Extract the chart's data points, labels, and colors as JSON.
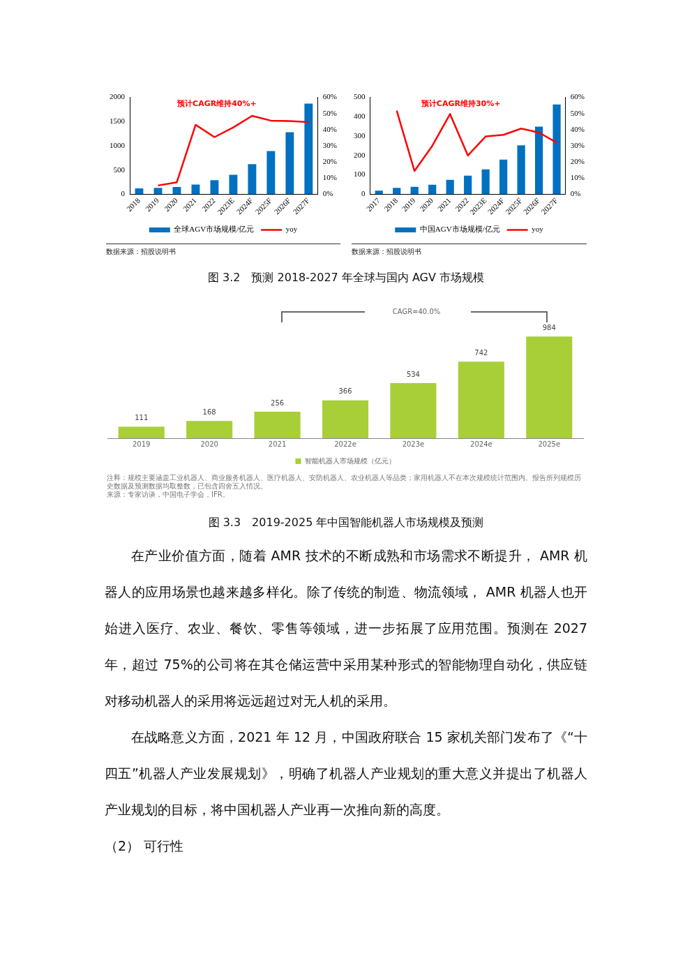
{
  "chart_data": [
    {
      "type": "bar",
      "categories": [
        "2018",
        "2019",
        "2020",
        "2021",
        "2022",
        "2023E",
        "2024F",
        "2025F",
        "2026F",
        "2027F"
      ],
      "series": [
        {
          "name": "全球AGV市场规模/亿元",
          "color": "#0070c0",
          "values": [
            120,
            130,
            150,
            200,
            290,
            400,
            620,
            890,
            1280,
            1870
          ]
        },
        {
          "name": "yoy",
          "type": "line",
          "axis": "y2",
          "color": "#ff0000",
          "values": [
            null,
            5.4,
            7.4,
            43,
            35.4,
            41.4,
            48.6,
            45.6,
            45.3,
            44.7
          ]
        }
      ],
      "ylim": [
        0,
        2000
      ],
      "yticks": [
        0,
        500,
        1000,
        1500,
        2000
      ],
      "y2lim": [
        0,
        60
      ],
      "y2ticks": [
        {
          "value": 0,
          "label": "0%"
        },
        {
          "value": 10,
          "label": "10%"
        },
        {
          "value": 20,
          "label": "20%"
        },
        {
          "value": 30,
          "label": "30%"
        },
        {
          "value": 40,
          "label": "40%"
        },
        {
          "value": 50,
          "label": "50%"
        },
        {
          "value": 60,
          "label": "60%"
        }
      ],
      "legend": "bottom",
      "marker": "none",
      "grid": false,
      "annotations": [
        "预计CAGR维持40%+",
        "数据来源：招股说明书"
      ]
    },
    {
      "type": "bar",
      "categories": [
        "2017",
        "2018",
        "2019",
        "2020",
        "2021",
        "2022",
        "2023E",
        "2024F",
        "2025F",
        "2026F",
        "2027F"
      ],
      "series": [
        {
          "name": "中国AGV市场规模/亿元",
          "color": "#0070c0",
          "values": [
            18,
            33,
            38,
            49,
            74,
            96,
            128,
            179,
            253,
            349,
            463
          ]
        },
        {
          "name": "yoy",
          "type": "line",
          "axis": "y2",
          "color": "#ff0000",
          "values": [
            null,
            51.8,
            14.4,
            30,
            49.7,
            24,
            35.8,
            36.8,
            40.7,
            38.2,
            32
          ]
        }
      ],
      "ylim": [
        0,
        500
      ],
      "yticks": [
        0,
        100,
        200,
        300,
        400,
        500
      ],
      "y2lim": [
        0,
        60
      ],
      "y2ticks": [
        {
          "value": 0,
          "label": "0%"
        },
        {
          "value": 10,
          "label": "10%"
        },
        {
          "value": 20,
          "label": "20%"
        },
        {
          "value": 30,
          "label": "30%"
        },
        {
          "value": 40,
          "label": "40%"
        },
        {
          "value": 50,
          "label": "50%"
        },
        {
          "value": 60,
          "label": "60%"
        }
      ],
      "legend": "bottom",
      "marker": "none",
      "grid": false,
      "annotations": [
        "预计CAGR维持30%+",
        "数据来源：招股说明书",
        "图 3.2　预测 2018-2027 年全球与国内 AGV 市场规模"
      ]
    },
    {
      "type": "bar",
      "categories": [
        "2019",
        "2020",
        "2021",
        "2022e",
        "2023e",
        "2024e",
        "2025e"
      ],
      "series": [
        {
          "name": "智能机器人市场规模（亿元）",
          "color": "#a9cf38",
          "values": [
            111,
            168,
            256,
            366,
            534,
            742,
            984
          ]
        }
      ],
      "data_labels": true,
      "legend": "bottom",
      "grid": false,
      "tick_labels": "x",
      "annotations": [
        "CAGR=40.0%",
        "注释：规模主要涵盖工业机器人、商业服务机器人、医疗机器人、安防机器人、农业机器人等品类；家用机器人不在本次规模统计范围内。报告所列规模历史数据及预测数据均取整数，已包含四舍五入情况。",
        "来源：专家访谈，中国电子学会，IFR。",
        "图 3.3　2019-2025 年中国智能机器人市场规模及预测"
      ]
    },
    {
      "type": "other",
      "annotations": [
        "在产业价值方面，随着 AMR 技术的不断成熟和市场需求不断提升， AMR 机器人的应用场景也越来越多样化。除了传统的制造、物流领域， AMR 机器人也开始进入医疗、农业、餐饮、零售等领域，进一步拓展了应用范围。预测在 2027 年，超过 75%的公司将在其仓储运营中采用某种形式的智能物理自动化，供应链对移动机器人的采用将远远超过对无人机的采用。",
        "在战略意义方面，2021 年 12 月，中国政府联合 15 家机关部门发布了《“十四五”机器人产业发展规划》，明确了机器人产业规划的重大意义并提出了机器人产业规划的目标，将中国机器人产业再一次推向新的高度。",
        "（2） 可行性"
      ]
    }
  ]
}
